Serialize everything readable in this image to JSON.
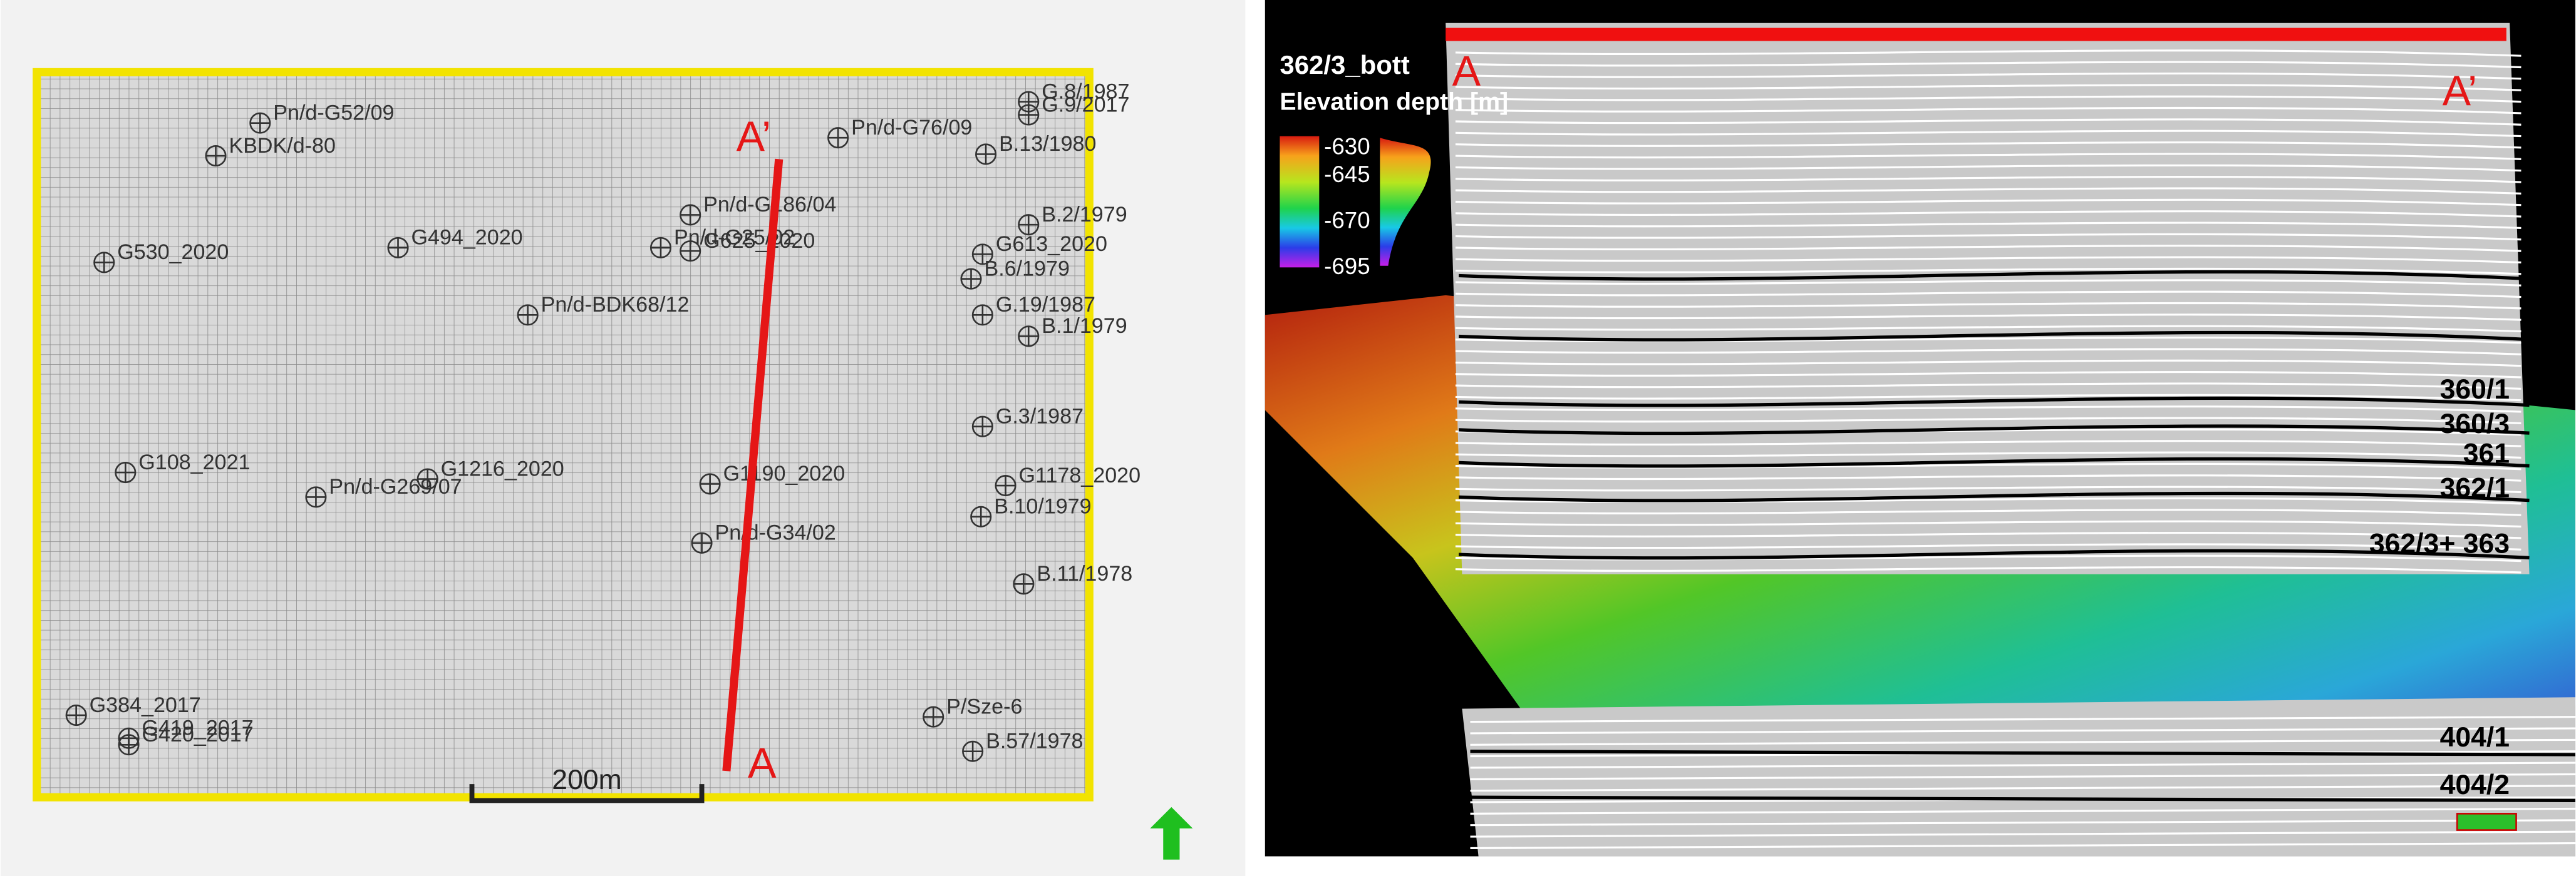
{
  "left_panel": {
    "wells": [
      "Pn/d-G52/09",
      "KBDK/d-80",
      "Pn/d-G76/09",
      "G.8/1987",
      "G.9/2017",
      "B.13/1980",
      "Pn/d-G186/04",
      "G494_2020",
      "G530_2020",
      "Pn/d-G25/02",
      "G625_2020",
      "B.2/1979",
      "G613_2020",
      "B.6/1979",
      "Pn/d-BDK68/12",
      "G.19/1987",
      "B.1/1979",
      "G.3/1987",
      "G108_2021",
      "G1216_2020",
      "Pn/d-G269/07",
      "G1190_2020",
      "G1178_2020",
      "B.10/1979",
      "Pn/d-G34/02",
      "B.11/1978",
      "G384_2017",
      "P/Sze-6",
      "G419_2017",
      "G420_2017",
      "B.57/1978"
    ],
    "scale_bar": "200m",
    "point_a": "A",
    "point_a_prime": "A’"
  },
  "right_panel": {
    "surface_name": "362/3_bott",
    "colorbar_title": "Elevation depth [m]",
    "colorbar_ticks": [
      -630,
      -645,
      -670,
      -695
    ],
    "point_a": "A",
    "point_a_prime": "A’",
    "horizons": [
      "360/1",
      "360/3",
      "361",
      "362/1",
      "362/3+ 363",
      "404/1",
      "404/2"
    ]
  }
}
